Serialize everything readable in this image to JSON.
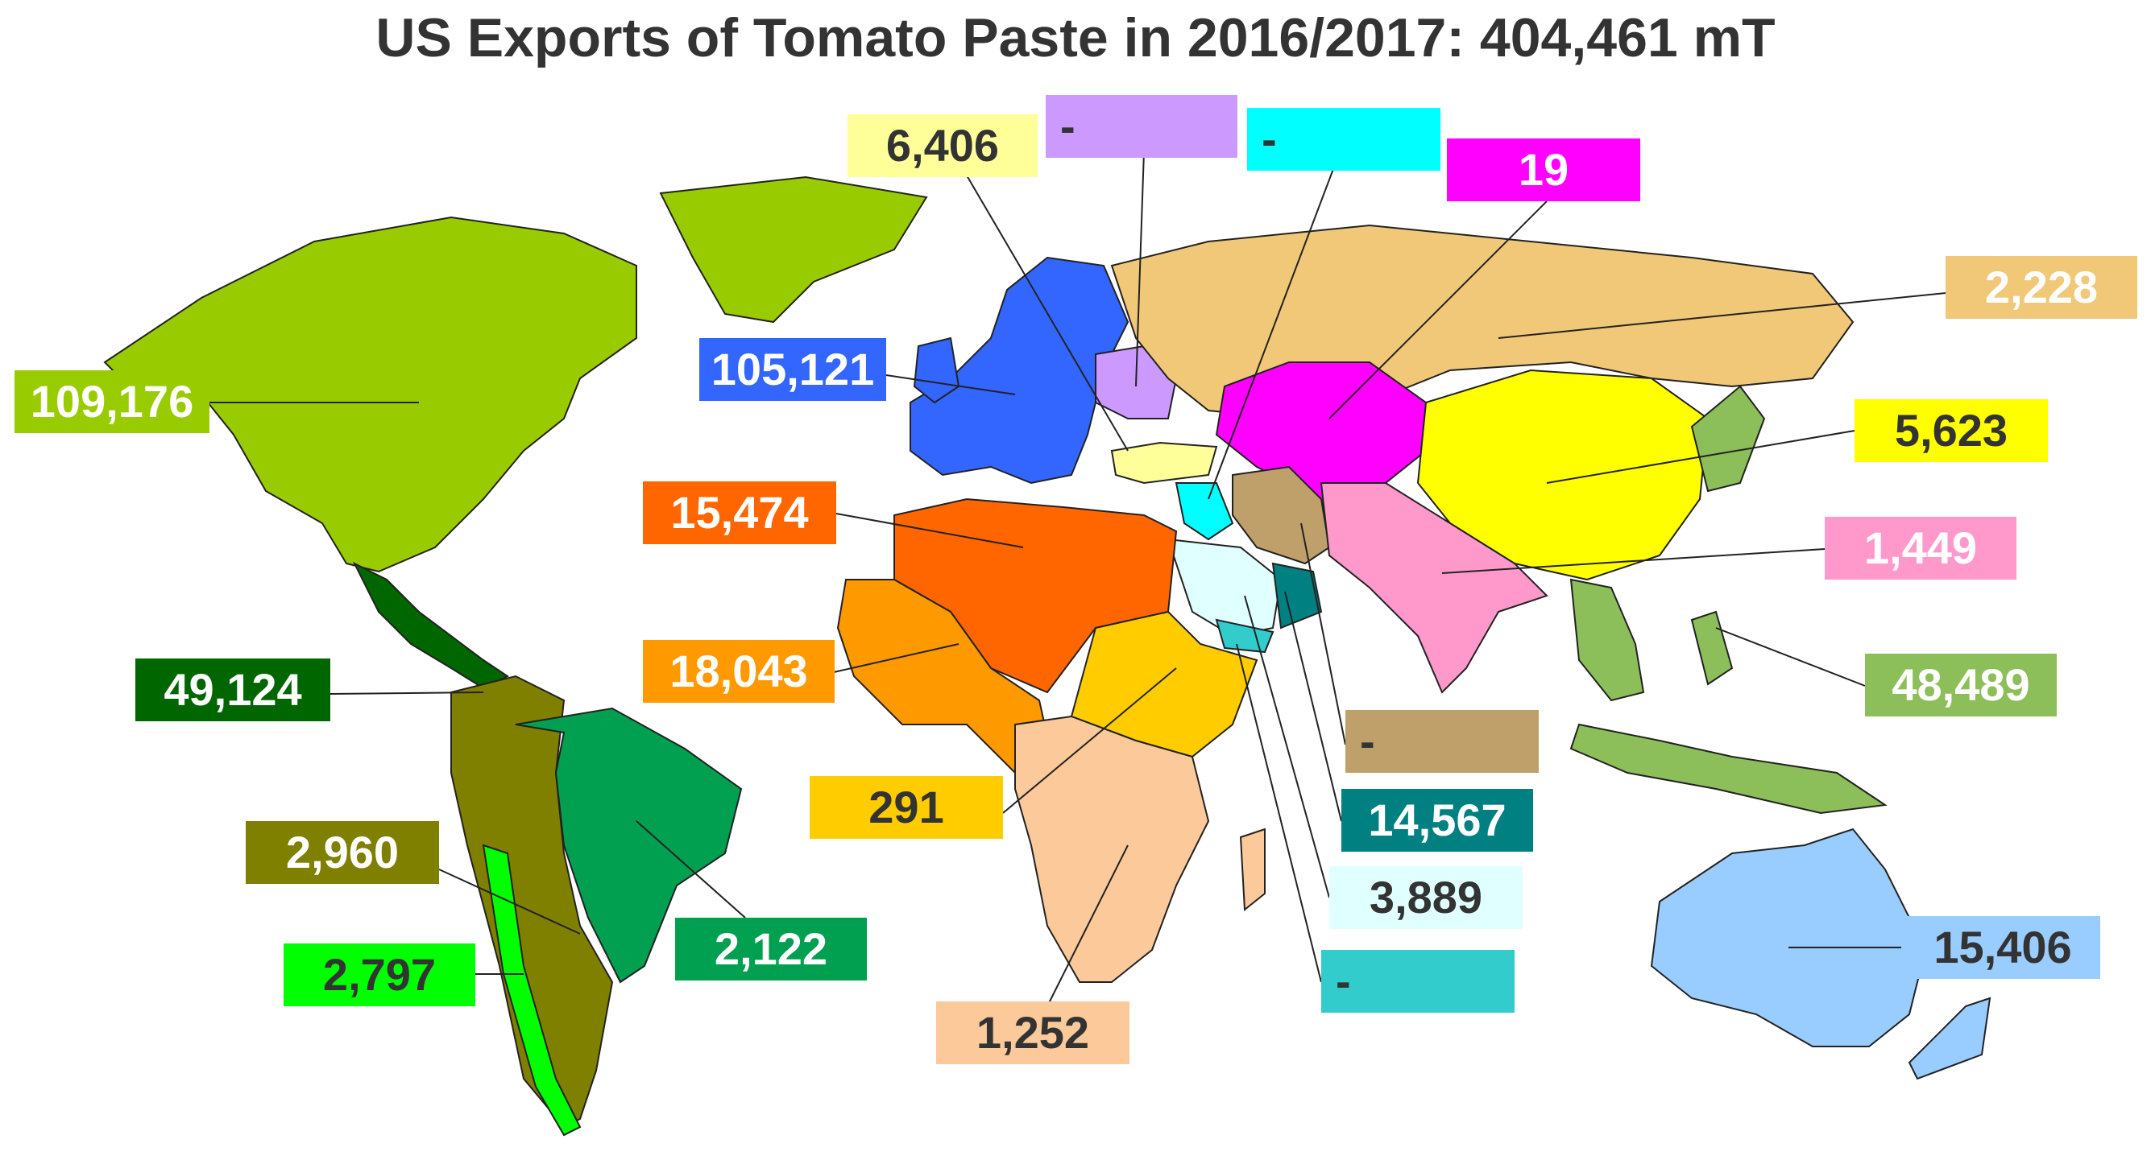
{
  "title": "US Exports of Tomato Paste in 2016/2017: 404,461 mT",
  "regions": [
    {
      "id": "north-america",
      "value": "109,176",
      "color": "#99cc00",
      "text": "white"
    },
    {
      "id": "central-america-caribbean",
      "value": "49,124",
      "color": "#006600",
      "text": "white"
    },
    {
      "id": "andean-south-america",
      "value": "2,960",
      "color": "#7f7f00",
      "text": "white"
    },
    {
      "id": "chile",
      "value": "2,797",
      "color": "#00ff00",
      "text": "dark"
    },
    {
      "id": "brazil-east-south-america",
      "value": "2,122",
      "color": "#00a050",
      "text": "white"
    },
    {
      "id": "europe",
      "value": "105,121",
      "color": "#3366ff",
      "text": "white"
    },
    {
      "id": "turkey",
      "value": "6,406",
      "color": "#ffff99",
      "text": "dark"
    },
    {
      "id": "ukraine-belarus",
      "value": "-",
      "color": "#cc99ff",
      "text": "dark"
    },
    {
      "id": "levant",
      "value": "-",
      "color": "#00ffff",
      "text": "dark"
    },
    {
      "id": "central-asia",
      "value": "19",
      "color": "#ff00ff",
      "text": "white"
    },
    {
      "id": "russia",
      "value": "2,228",
      "color": "#f0c878",
      "text": "white"
    },
    {
      "id": "china-mongolia",
      "value": "5,623",
      "color": "#ffff00",
      "text": "dark"
    },
    {
      "id": "south-asia",
      "value": "1,449",
      "color": "#ff99cc",
      "text": "white"
    },
    {
      "id": "east-southeast-asia",
      "value": "48,489",
      "color": "#8cbf5a",
      "text": "white"
    },
    {
      "id": "north-africa",
      "value": "15,474",
      "color": "#ff6600",
      "text": "white"
    },
    {
      "id": "west-africa",
      "value": "18,043",
      "color": "#ff9900",
      "text": "white"
    },
    {
      "id": "east-africa",
      "value": "291",
      "color": "#ffcc00",
      "text": "dark"
    },
    {
      "id": "southern-africa",
      "value": "1,252",
      "color": "#fcc99a",
      "text": "dark"
    },
    {
      "id": "iran",
      "value": "-",
      "color": "#bfa06a",
      "text": "dark"
    },
    {
      "id": "gulf-states",
      "value": "14,567",
      "color": "#008080",
      "text": "white"
    },
    {
      "id": "saudi-arabia",
      "value": "3,889",
      "color": "#e0ffff",
      "text": "dark"
    },
    {
      "id": "yemen",
      "value": "-",
      "color": "#33cccc",
      "text": "dark"
    },
    {
      "id": "oceania",
      "value": "15,406",
      "color": "#99ccff",
      "text": "dark"
    }
  ]
}
